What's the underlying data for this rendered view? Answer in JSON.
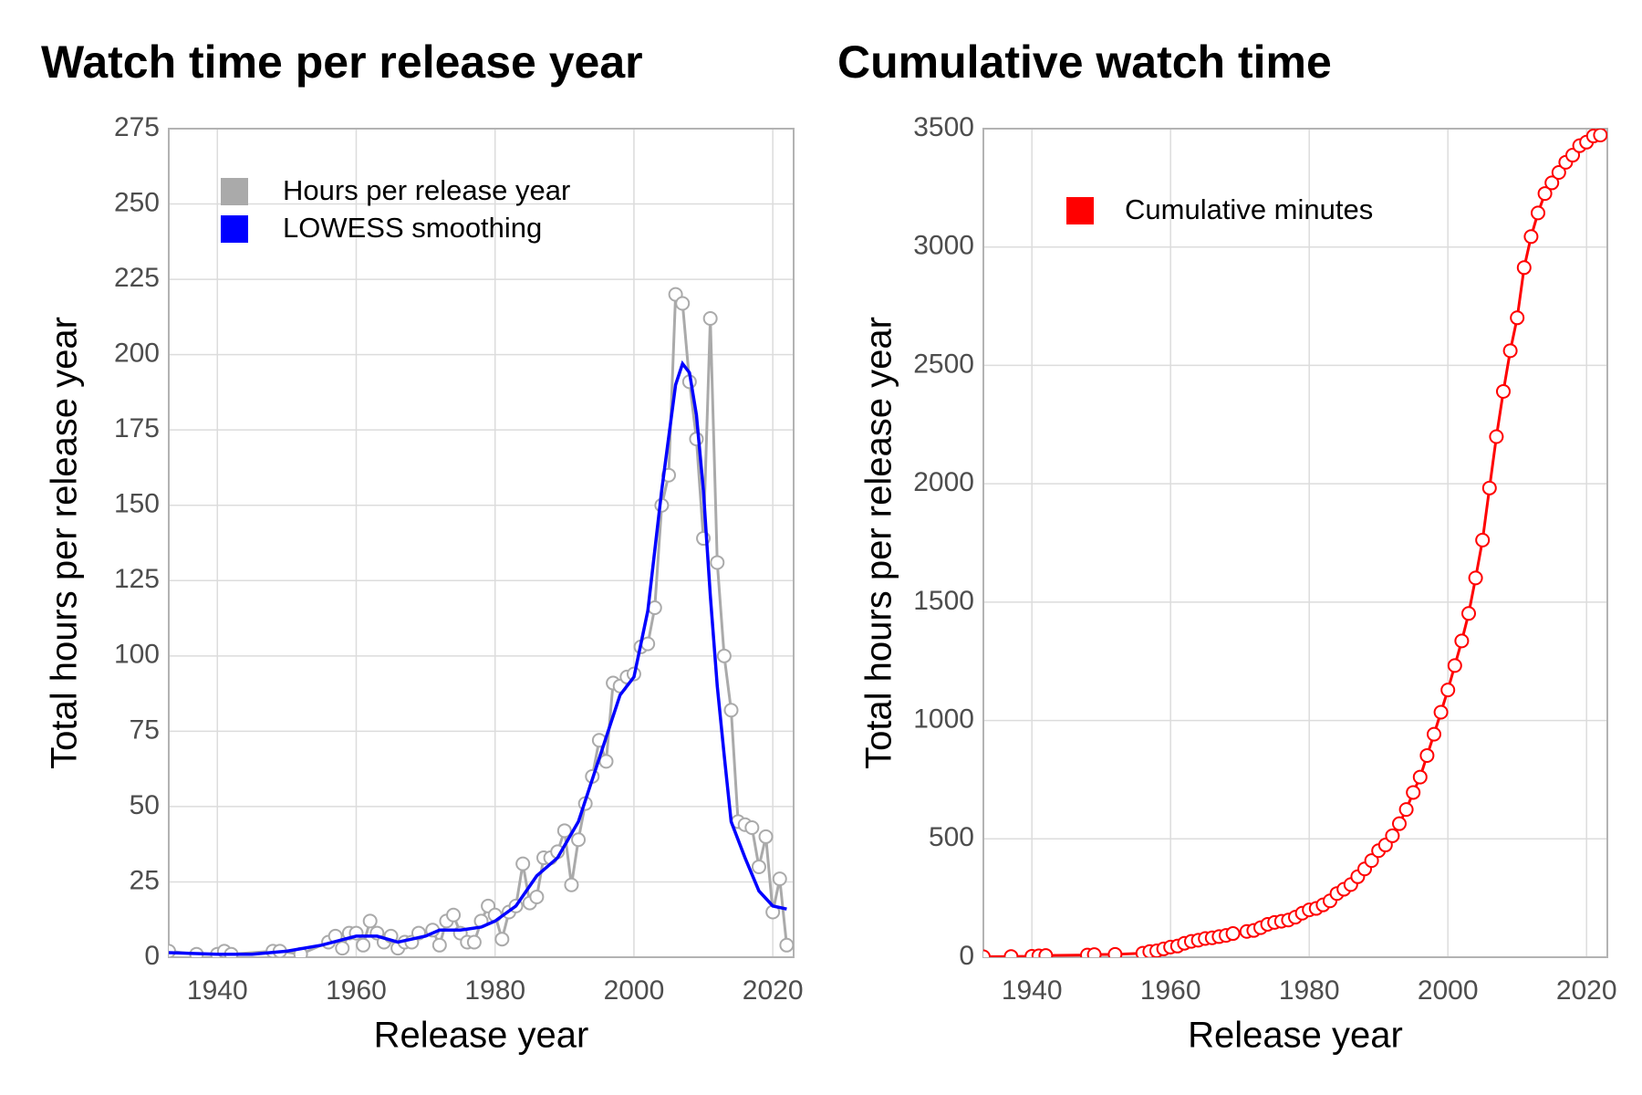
{
  "chart_data": [
    {
      "type": "line",
      "title": "Watch time per release year",
      "x_label": "Release year",
      "y_label": "Total hours per release year",
      "xlim": [
        1933,
        2023
      ],
      "ylim": [
        0,
        275
      ],
      "xticks": [
        1940,
        1960,
        1980,
        2000,
        2020
      ],
      "yticks": [
        0,
        25,
        50,
        75,
        100,
        125,
        150,
        175,
        200,
        225,
        250,
        275
      ],
      "grid": true,
      "legend": "top-left",
      "series": [
        {
          "name": "Hours per release year",
          "color": "#aaaaaa",
          "markers": true,
          "x": [
            1933,
            1937,
            1940,
            1941,
            1942,
            1948,
            1949,
            1952,
            1956,
            1957,
            1958,
            1959,
            1960,
            1961,
            1962,
            1963,
            1964,
            1965,
            1966,
            1967,
            1968,
            1969,
            1971,
            1972,
            1973,
            1974,
            1975,
            1976,
            1977,
            1978,
            1979,
            1980,
            1981,
            1982,
            1983,
            1984,
            1985,
            1986,
            1987,
            1988,
            1989,
            1990,
            1991,
            1992,
            1993,
            1994,
            1995,
            1996,
            1997,
            1998,
            1999,
            2000,
            2001,
            2002,
            2003,
            2004,
            2005,
            2006,
            2007,
            2008,
            2009,
            2010,
            2011,
            2012,
            2013,
            2014,
            2015,
            2016,
            2017,
            2018,
            2019,
            2020,
            2021,
            2022
          ],
          "values": [
            2,
            1,
            1,
            2,
            1,
            2,
            2,
            1,
            5,
            7,
            3,
            8,
            8,
            4,
            12,
            8,
            5,
            7,
            3,
            5,
            5,
            8,
            9,
            4,
            12,
            14,
            8,
            5,
            5,
            12,
            17,
            14,
            6,
            15,
            17,
            31,
            18,
            20,
            33,
            33,
            35,
            42,
            24,
            39,
            51,
            60,
            72,
            65,
            91,
            90,
            93,
            94,
            103,
            104,
            116,
            150,
            160,
            220,
            217,
            191,
            172,
            139,
            212,
            131,
            100,
            82,
            45,
            44,
            43,
            30,
            40,
            15,
            26,
            4
          ]
        },
        {
          "name": "LOWESS smoothing",
          "color": "#0000ff",
          "markers": false,
          "x": [
            1933,
            1940,
            1945,
            1950,
            1955,
            1960,
            1963,
            1966,
            1970,
            1972,
            1975,
            1978,
            1980,
            1983,
            1986,
            1989,
            1992,
            1995,
            1998,
            2000,
            2002,
            2004,
            2006,
            2007,
            2008,
            2009,
            2010,
            2011,
            2012,
            2013,
            2014,
            2016,
            2018,
            2020,
            2022
          ],
          "values": [
            1.5,
            1,
            1,
            2,
            4,
            7,
            7,
            5,
            7,
            9,
            9,
            10,
            12,
            17,
            27,
            33,
            45,
            66,
            87,
            93,
            115,
            155,
            190,
            197,
            194,
            180,
            155,
            120,
            90,
            67,
            45,
            33,
            22,
            17,
            16
          ]
        }
      ]
    },
    {
      "type": "line",
      "title": "Cumulative watch time",
      "x_label": "Release year",
      "y_label": "Total hours per release year",
      "xlim": [
        1933,
        2023
      ],
      "ylim": [
        0,
        3500
      ],
      "xticks": [
        1940,
        1960,
        1980,
        2000,
        2020
      ],
      "yticks": [
        0,
        500,
        1000,
        1500,
        2000,
        2500,
        3000,
        3500
      ],
      "grid": true,
      "legend": "top-left",
      "series": [
        {
          "name": "Cumulative minutes",
          "color": "#ff0000",
          "markers": true,
          "x": [
            1933,
            1937,
            1940,
            1941,
            1942,
            1948,
            1949,
            1952,
            1956,
            1957,
            1958,
            1959,
            1960,
            1961,
            1962,
            1963,
            1964,
            1965,
            1966,
            1967,
            1968,
            1969,
            1971,
            1972,
            1973,
            1974,
            1975,
            1976,
            1977,
            1978,
            1979,
            1980,
            1981,
            1982,
            1983,
            1984,
            1985,
            1986,
            1987,
            1988,
            1989,
            1990,
            1991,
            1992,
            1993,
            1994,
            1995,
            1996,
            1997,
            1998,
            1999,
            2000,
            2001,
            2002,
            2003,
            2004,
            2005,
            2006,
            2007,
            2008,
            2009,
            2010,
            2011,
            2012,
            2013,
            2014,
            2015,
            2016,
            2017,
            2018,
            2019,
            2020,
            2021,
            2022
          ],
          "values": [
            2,
            3,
            4,
            6,
            7,
            9,
            11,
            12,
            17,
            24,
            27,
            35,
            43,
            47,
            59,
            67,
            72,
            79,
            82,
            87,
            92,
            100,
            109,
            113,
            125,
            139,
            147,
            152,
            157,
            169,
            186,
            200,
            206,
            221,
            238,
            269,
            287,
            307,
            340,
            373,
            408,
            450,
            474,
            513,
            564,
            624,
            696,
            761,
            852,
            942,
            1035,
            1129,
            1232,
            1336,
            1452,
            1602,
            1762,
            1982,
            2199,
            2390,
            2562,
            2701,
            2913,
            3044,
            3144,
            3226,
            3271,
            3315,
            3358,
            3388,
            3428,
            3443,
            3469,
            3473
          ]
        }
      ]
    }
  ]
}
